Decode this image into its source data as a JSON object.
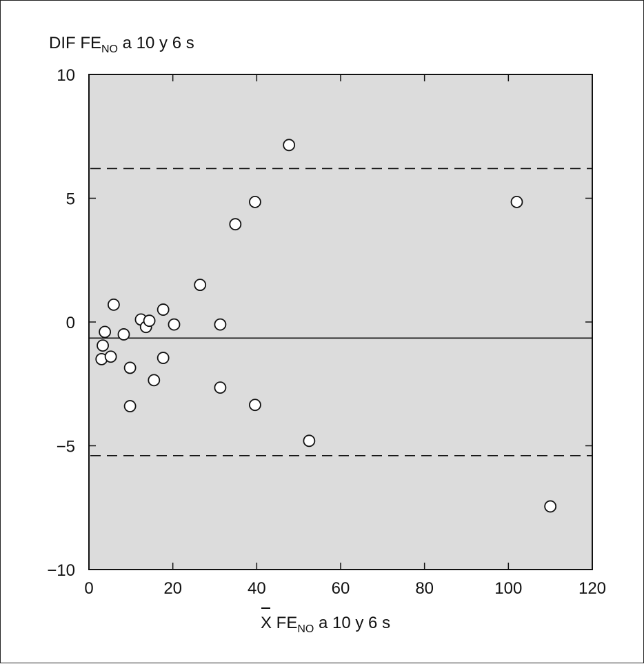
{
  "chart_data": {
    "type": "scatter",
    "ylabel": {
      "main": "DIF FE",
      "sub": "NO",
      "rest": " a 10 y 6 s"
    },
    "xlabel": {
      "main": "X FE",
      "sub": "NO",
      "rest": " a 10 y 6 s"
    },
    "xlim": [
      0,
      120
    ],
    "ylim": [
      -10,
      10
    ],
    "xticks": [
      0,
      20,
      40,
      60,
      80,
      100,
      120
    ],
    "yticks": [
      10,
      5,
      0,
      -5,
      -10
    ],
    "xtick_labels": [
      "0",
      "20",
      "40",
      "60",
      "80",
      "100",
      "120"
    ],
    "ytick_labels": [
      "10",
      "5",
      "0",
      "−5",
      "−10"
    ],
    "mean_line": -0.65,
    "upper_limit": 6.2,
    "lower_limit": -5.4,
    "grid": false,
    "background_color": "#dcdcdc",
    "points": [
      {
        "x": 3,
        "y": -1.5
      },
      {
        "x": 3.3,
        "y": -0.95
      },
      {
        "x": 3.8,
        "y": -0.4
      },
      {
        "x": 5.2,
        "y": -1.4
      },
      {
        "x": 5.9,
        "y": 0.7
      },
      {
        "x": 8.3,
        "y": -0.5
      },
      {
        "x": 9.8,
        "y": -1.85
      },
      {
        "x": 9.8,
        "y": -3.4
      },
      {
        "x": 12.4,
        "y": 0.1
      },
      {
        "x": 13.6,
        "y": -0.2
      },
      {
        "x": 14.4,
        "y": 0.05
      },
      {
        "x": 15.5,
        "y": -2.35
      },
      {
        "x": 17.7,
        "y": 0.5
      },
      {
        "x": 17.7,
        "y": -1.45
      },
      {
        "x": 20.3,
        "y": -0.1
      },
      {
        "x": 26.5,
        "y": 1.5
      },
      {
        "x": 31.3,
        "y": -0.1
      },
      {
        "x": 31.3,
        "y": -2.65
      },
      {
        "x": 34.9,
        "y": 3.95
      },
      {
        "x": 39.6,
        "y": 4.85
      },
      {
        "x": 39.6,
        "y": -3.35
      },
      {
        "x": 47.7,
        "y": 7.15
      },
      {
        "x": 52.5,
        "y": -4.8
      },
      {
        "x": 102,
        "y": 4.85
      },
      {
        "x": 110,
        "y": -7.45
      }
    ]
  }
}
